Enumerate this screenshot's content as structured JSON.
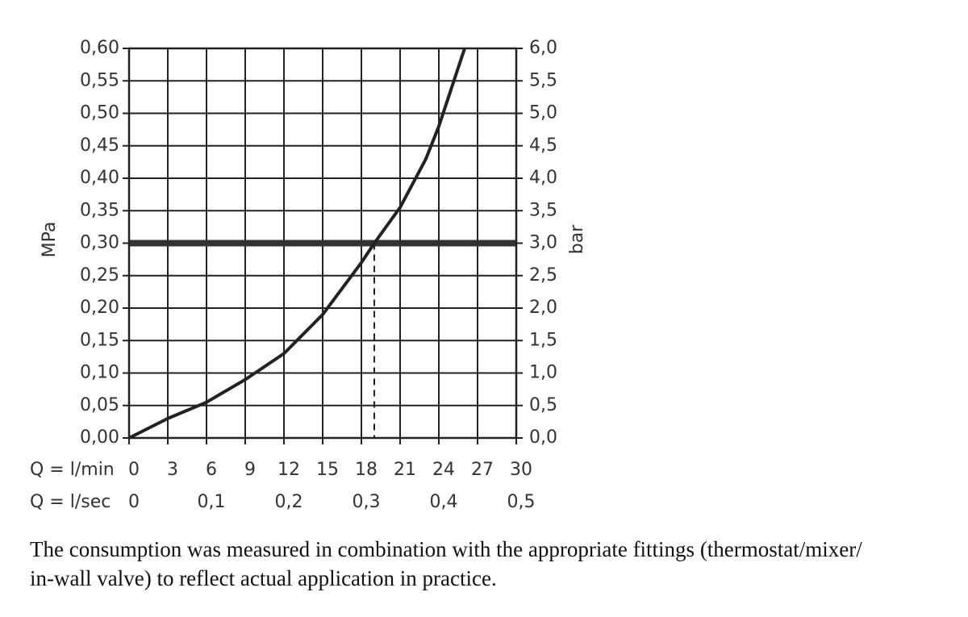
{
  "chart_data": {
    "type": "line",
    "ylabel": "MPa",
    "y2label": "bar",
    "xlabel": "Q = l/min",
    "x2label": "Q = l/sec",
    "x": [
      0,
      3,
      6,
      9,
      12,
      15,
      18,
      19,
      21,
      23,
      24,
      26
    ],
    "values": [
      0,
      0.03,
      0.055,
      0.09,
      0.13,
      0.19,
      0.27,
      0.3,
      0.355,
      0.43,
      0.48,
      0.6
    ],
    "color": "#222222",
    "xlim": [
      0,
      30
    ],
    "xticks": [
      0,
      3,
      6,
      9,
      12,
      15,
      18,
      21,
      24,
      27,
      30
    ],
    "x2lim": [
      0,
      0.5
    ],
    "x2ticks": [
      0,
      {
        "value": 0.1,
        "label": "0,1"
      },
      {
        "value": 0.2,
        "label": "0,2"
      },
      {
        "value": 0.3,
        "label": "0,3"
      },
      {
        "value": 0.4,
        "label": "0,4"
      },
      {
        "value": 0.5,
        "label": "0,5"
      }
    ],
    "ylim": [
      0,
      0.6
    ],
    "yticks": [
      {
        "value": 0,
        "label": "0,00"
      },
      {
        "value": 0.05,
        "label": "0,05"
      },
      {
        "value": 0.1,
        "label": "0,10"
      },
      {
        "value": 0.15,
        "label": "0,15"
      },
      {
        "value": 0.2,
        "label": "0,20"
      },
      {
        "value": 0.25,
        "label": "0,25"
      },
      {
        "value": 0.3,
        "label": "0,30"
      },
      {
        "value": 0.35,
        "label": "0,35"
      },
      {
        "value": 0.4,
        "label": "0,40"
      },
      {
        "value": 0.45,
        "label": "0,45"
      },
      {
        "value": 0.5,
        "label": "0,50"
      },
      {
        "value": 0.55,
        "label": "0,55"
      },
      {
        "value": 0.6,
        "label": "0,60"
      }
    ],
    "y2lim": [
      0,
      6
    ],
    "y2ticks": [
      {
        "value": 0,
        "label": "0,0"
      },
      {
        "value": 0.5,
        "label": "0,5"
      },
      {
        "value": 1,
        "label": "1,0"
      },
      {
        "value": 1.5,
        "label": "1,5"
      },
      {
        "value": 2,
        "label": "2,0"
      },
      {
        "value": 2.5,
        "label": "2,5"
      },
      {
        "value": 3,
        "label": "3,0"
      },
      {
        "value": 3.5,
        "label": "3,5"
      },
      {
        "value": 4,
        "label": "4,0"
      },
      {
        "value": 4.5,
        "label": "4,5"
      },
      {
        "value": 5,
        "label": "5,0"
      },
      {
        "value": 5.5,
        "label": "5,5"
      },
      {
        "value": 6,
        "label": "6,0"
      }
    ],
    "grid": true,
    "reference_y": 0.3,
    "reference_x": 19
  },
  "caption": [
    "The consumption was measured in combination with the appropriate fittings (thermostat/mixer/",
    "in-wall valve) to reflect actual application in practice."
  ]
}
